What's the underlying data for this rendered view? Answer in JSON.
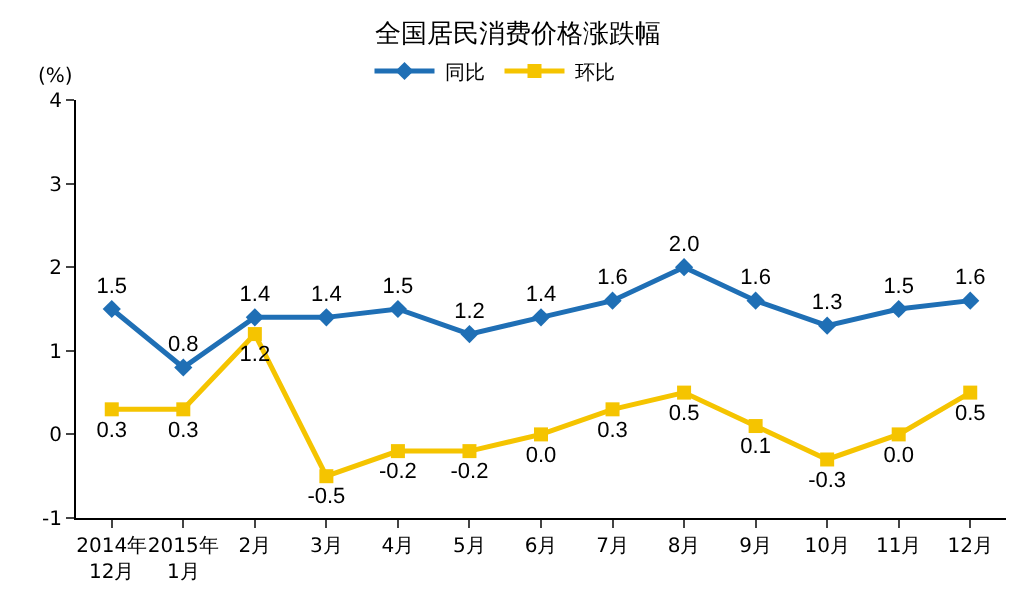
{
  "chart_data": {
    "type": "line",
    "title": "全国居民消费价格涨跌幅",
    "ylabel": "(%)",
    "categories": [
      "2014年\n12月",
      "2015年\n1月",
      "2月",
      "3月",
      "4月",
      "5月",
      "6月",
      "7月",
      "8月",
      "9月",
      "10月",
      "11月",
      "12月"
    ],
    "series": [
      {
        "name": "同比",
        "color": "#1f6fb5",
        "marker": "diamond",
        "values": [
          1.5,
          0.8,
          1.4,
          1.4,
          1.5,
          1.2,
          1.4,
          1.6,
          2.0,
          1.6,
          1.3,
          1.5,
          1.6
        ],
        "value_labels": [
          "1.5",
          "0.8",
          "1.4",
          "1.4",
          "1.5",
          "1.2",
          "1.4",
          "1.6",
          "2.0",
          "1.6",
          "1.3",
          "1.5",
          "1.6"
        ]
      },
      {
        "name": "环比",
        "color": "#f5c400",
        "marker": "square",
        "values": [
          0.3,
          0.3,
          1.2,
          -0.5,
          -0.2,
          -0.2,
          0.0,
          0.3,
          0.5,
          0.1,
          -0.3,
          0.0,
          0.5
        ],
        "value_labels": [
          "0.3",
          "0.3",
          "1.2",
          "-0.5",
          "-0.2",
          "-0.2",
          "0.0",
          "0.3",
          "0.5",
          "0.1",
          "-0.3",
          "0.0",
          "0.5"
        ]
      }
    ],
    "ylim": [
      -1,
      4
    ],
    "yticks": [
      -1,
      0,
      1,
      2,
      3,
      4
    ],
    "grid": false,
    "legend": "top"
  }
}
